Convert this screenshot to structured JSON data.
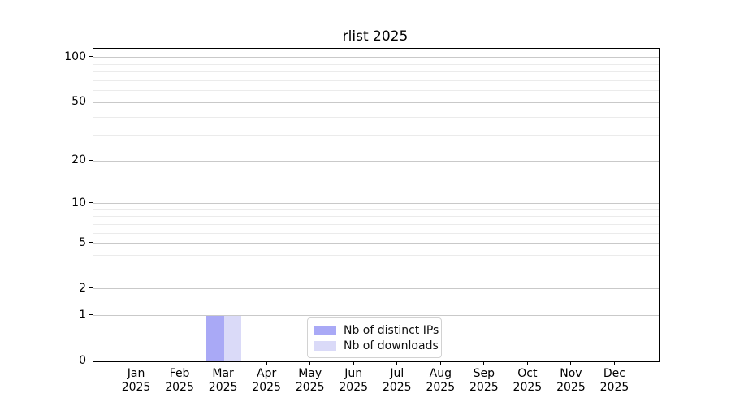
{
  "chart_data": {
    "type": "bar",
    "title": "rlist 2025",
    "months": [
      "Jan",
      "Feb",
      "Mar",
      "Apr",
      "May",
      "Jun",
      "Jul",
      "Aug",
      "Sep",
      "Oct",
      "Nov",
      "Dec"
    ],
    "year": "2025",
    "y_scale": "log1p",
    "y_major_ticks": [
      0,
      1,
      2,
      5,
      10,
      20,
      50,
      100
    ],
    "y_minor_ticks": [
      3,
      4,
      6,
      7,
      8,
      9,
      30,
      40,
      60,
      70,
      80,
      90
    ],
    "ylim": [
      0,
      115
    ],
    "grid": "horizontal-major-and-minor",
    "legend_position": "lower-center",
    "series": [
      {
        "name": "Nb of distinct IPs",
        "color": "#a9a9f6",
        "values": [
          0,
          0,
          1,
          0,
          0,
          0,
          0,
          0,
          0,
          0,
          0,
          0
        ]
      },
      {
        "name": "Nb of downloads",
        "color": "#dadaf8",
        "values": [
          0,
          0,
          1,
          0,
          0,
          0,
          0,
          0,
          0,
          0,
          0,
          0
        ]
      }
    ],
    "colors": {
      "major_grid": "#c9c9c9",
      "minor_grid": "#ebebeb",
      "axis": "#000000"
    }
  }
}
